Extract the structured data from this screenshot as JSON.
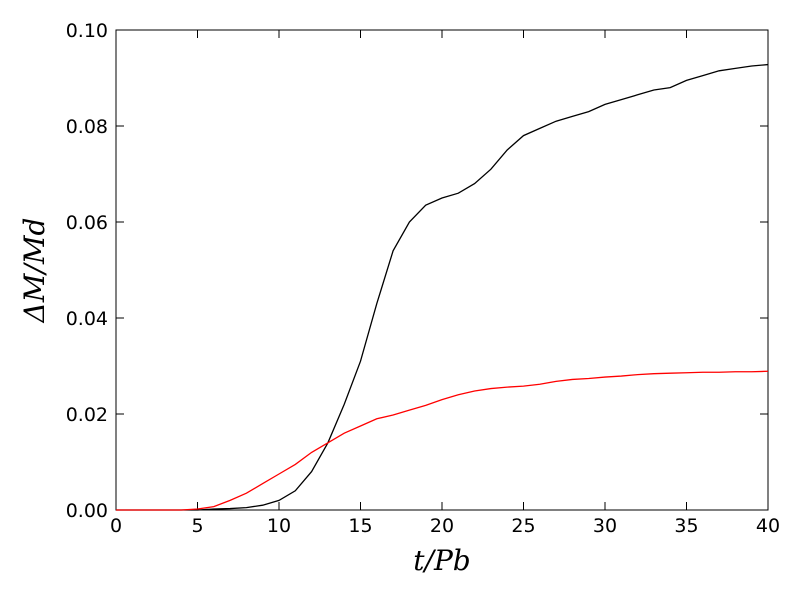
{
  "chart_data": {
    "type": "line",
    "xlabel": "t/Pb",
    "ylabel": "ΔM/Md",
    "x": [
      0,
      1,
      2,
      3,
      4,
      5,
      6,
      7,
      8,
      9,
      10,
      11,
      12,
      13,
      14,
      15,
      16,
      17,
      18,
      19,
      20,
      21,
      22,
      23,
      24,
      25,
      26,
      27,
      28,
      29,
      30,
      31,
      32,
      33,
      34,
      35,
      36,
      37,
      38,
      39,
      40
    ],
    "series": [
      {
        "color": "#000000",
        "values": [
          0,
          0,
          0,
          0,
          0,
          0,
          0.0002,
          0.0003,
          0.0005,
          0.001,
          0.002,
          0.004,
          0.008,
          0.014,
          0.022,
          0.031,
          0.043,
          0.054,
          0.06,
          0.0635,
          0.065,
          0.066,
          0.068,
          0.071,
          0.075,
          0.078,
          0.0795,
          0.081,
          0.082,
          0.083,
          0.0845,
          0.0855,
          0.0865,
          0.0875,
          0.088,
          0.0895,
          0.0905,
          0.0915,
          0.092,
          0.0925,
          0.0928
        ]
      },
      {
        "color": "#ff0000",
        "values": [
          0,
          0,
          0,
          0,
          0,
          0.0002,
          0.0007,
          0.002,
          0.0035,
          0.0055,
          0.0075,
          0.0095,
          0.012,
          0.014,
          0.016,
          0.0175,
          0.019,
          0.0198,
          0.0208,
          0.0218,
          0.023,
          0.024,
          0.0248,
          0.0253,
          0.0256,
          0.0258,
          0.0262,
          0.0268,
          0.0272,
          0.0274,
          0.0277,
          0.0279,
          0.0282,
          0.0284,
          0.0285,
          0.0286,
          0.0287,
          0.0287,
          0.0288,
          0.0288,
          0.0289
        ]
      }
    ],
    "xlim": [
      0,
      40
    ],
    "xticks": [
      0,
      5,
      10,
      15,
      20,
      25,
      30,
      35,
      40
    ],
    "ylim": [
      0,
      0.1
    ],
    "yticks": [
      {
        "value": 0,
        "label": "0.00"
      },
      {
        "value": 0.02,
        "label": "0.02"
      },
      {
        "value": 0.04,
        "label": "0.04"
      },
      {
        "value": 0.06,
        "label": "0.06"
      },
      {
        "value": 0.08,
        "label": "0.08"
      },
      {
        "value": 0.1,
        "label": "0.10"
      }
    ],
    "grid": false
  }
}
